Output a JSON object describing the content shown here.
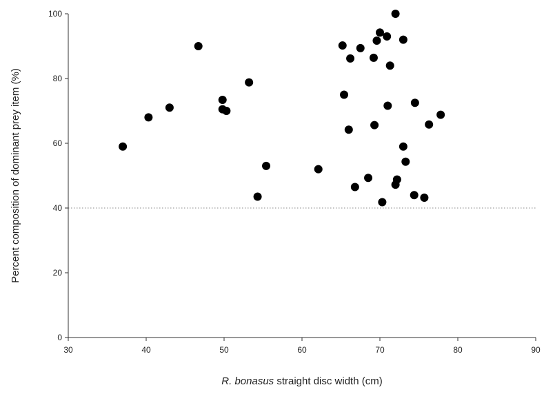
{
  "chart_data": {
    "type": "scatter",
    "title": "",
    "xlabel_italic": "R. bonasus",
    "xlabel_rest": " straight disc width (cm)",
    "ylabel": "Percent composition of dominant prey item (%)",
    "xlim": [
      30,
      90
    ],
    "ylim": [
      0,
      100
    ],
    "x_ticks": [
      30,
      40,
      50,
      60,
      70,
      80,
      90
    ],
    "y_ticks": [
      0,
      20,
      40,
      60,
      80,
      100
    ],
    "reference_line_y": 40,
    "grid": false,
    "marker_color": "#000000",
    "points": [
      {
        "x": 37.0,
        "y": 59.0
      },
      {
        "x": 40.3,
        "y": 68.0
      },
      {
        "x": 43.0,
        "y": 71.0
      },
      {
        "x": 46.7,
        "y": 90.0
      },
      {
        "x": 49.8,
        "y": 73.4
      },
      {
        "x": 49.8,
        "y": 70.5
      },
      {
        "x": 50.3,
        "y": 70.0
      },
      {
        "x": 53.2,
        "y": 78.8
      },
      {
        "x": 54.3,
        "y": 43.5
      },
      {
        "x": 55.4,
        "y": 53.0
      },
      {
        "x": 62.1,
        "y": 52.0
      },
      {
        "x": 65.2,
        "y": 90.2
      },
      {
        "x": 65.4,
        "y": 75.0
      },
      {
        "x": 66.0,
        "y": 64.2
      },
      {
        "x": 66.2,
        "y": 86.2
      },
      {
        "x": 66.8,
        "y": 46.5
      },
      {
        "x": 67.5,
        "y": 89.4
      },
      {
        "x": 68.5,
        "y": 49.3
      },
      {
        "x": 69.2,
        "y": 86.4
      },
      {
        "x": 69.3,
        "y": 65.6
      },
      {
        "x": 69.6,
        "y": 91.7
      },
      {
        "x": 70.0,
        "y": 94.2
      },
      {
        "x": 70.3,
        "y": 41.8
      },
      {
        "x": 70.9,
        "y": 93.0
      },
      {
        "x": 71.0,
        "y": 71.6
      },
      {
        "x": 71.3,
        "y": 84.0
      },
      {
        "x": 72.0,
        "y": 100.0
      },
      {
        "x": 72.0,
        "y": 47.2
      },
      {
        "x": 72.2,
        "y": 48.8
      },
      {
        "x": 73.0,
        "y": 92.0
      },
      {
        "x": 73.0,
        "y": 59.0
      },
      {
        "x": 73.3,
        "y": 54.3
      },
      {
        "x": 74.4,
        "y": 44.0
      },
      {
        "x": 74.5,
        "y": 72.5
      },
      {
        "x": 75.7,
        "y": 43.2
      },
      {
        "x": 76.3,
        "y": 65.8
      },
      {
        "x": 77.8,
        "y": 68.8
      }
    ]
  }
}
